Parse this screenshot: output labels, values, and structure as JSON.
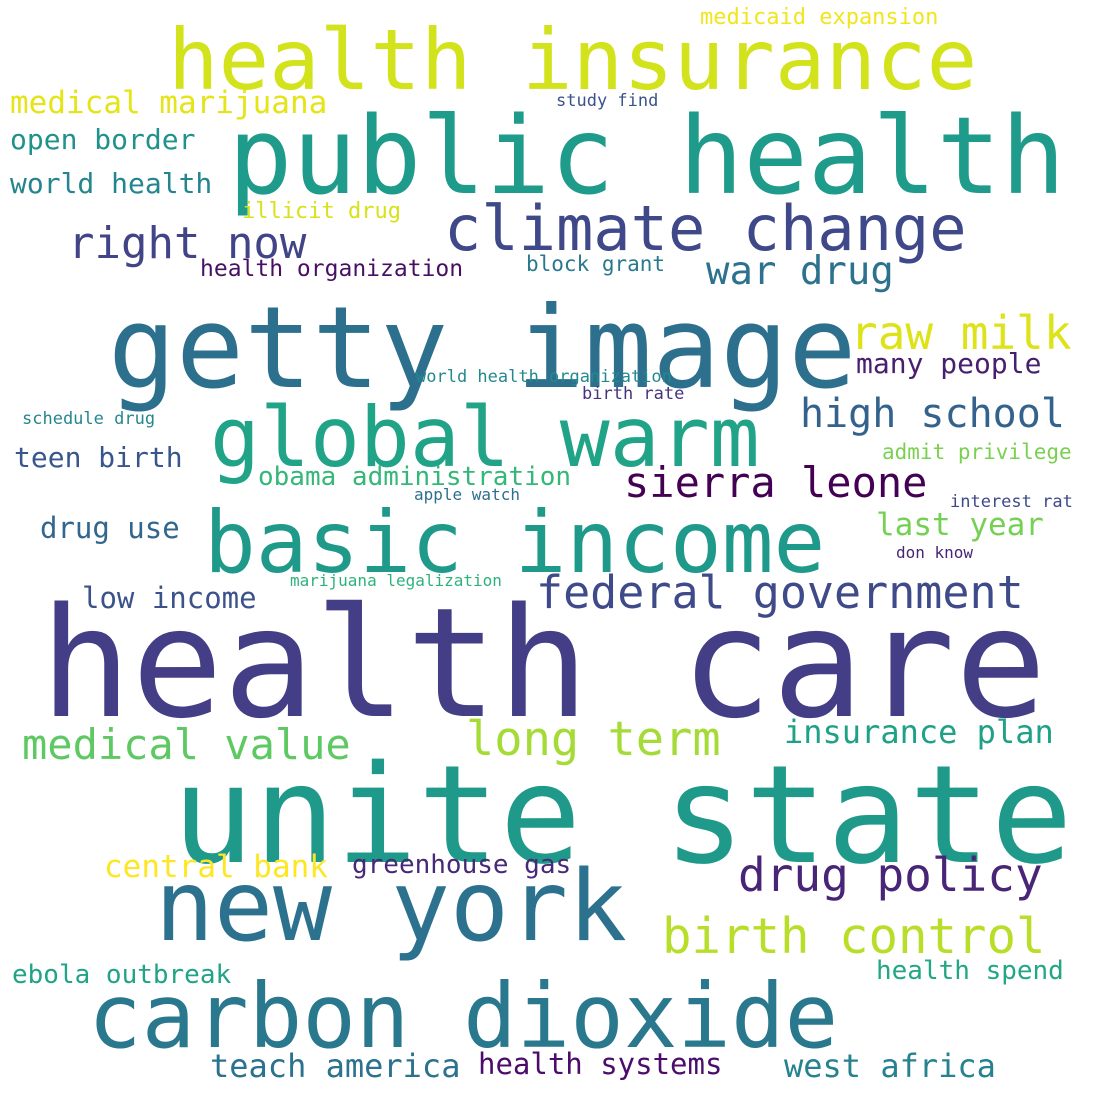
{
  "words": [
    {
      "text": "health care",
      "color": "#433e85"
    },
    {
      "text": "unite state",
      "color": "#1f9a8a"
    },
    {
      "text": "getty image",
      "color": "#2d708e"
    },
    {
      "text": "public health",
      "color": "#1e9b8a"
    },
    {
      "text": "health insurance",
      "color": "#d2e21b"
    },
    {
      "text": "basic income",
      "color": "#1f9a8a"
    },
    {
      "text": "global warm",
      "color": "#20a386"
    },
    {
      "text": "new york",
      "color": "#2c728e"
    },
    {
      "text": "carbon dioxide",
      "color": "#2a788e"
    },
    {
      "text": "climate change",
      "color": "#3f4889"
    },
    {
      "text": "federal government",
      "color": "#3e4a89"
    },
    {
      "text": "birth control",
      "color": "#b8de29"
    },
    {
      "text": "long term",
      "color": "#a5db36"
    },
    {
      "text": "drug policy",
      "color": "#482576"
    },
    {
      "text": "medical value",
      "color": "#5ec962"
    },
    {
      "text": "sierra leone",
      "color": "#440154"
    },
    {
      "text": "raw milk",
      "color": "#dde318"
    },
    {
      "text": "right now",
      "color": "#414487"
    },
    {
      "text": "war drug",
      "color": "#2c728e"
    },
    {
      "text": "high school",
      "color": "#33638d"
    },
    {
      "text": "medical marijuana",
      "color": "#e5e419"
    },
    {
      "text": "open border",
      "color": "#21918c"
    },
    {
      "text": "world health",
      "color": "#25858e"
    },
    {
      "text": "insurance plan",
      "color": "#1fa187"
    },
    {
      "text": "last year",
      "color": "#75d054"
    },
    {
      "text": "teach america",
      "color": "#2c728e"
    },
    {
      "text": "west africa",
      "color": "#26828e"
    },
    {
      "text": "health systems",
      "color": "#4b0c6b"
    },
    {
      "text": "greenhouse gas",
      "color": "#482878"
    },
    {
      "text": "central bank",
      "color": "#fde725"
    },
    {
      "text": "ebola outbreak",
      "color": "#20a386"
    },
    {
      "text": "health spend",
      "color": "#22a785"
    },
    {
      "text": "obama administration",
      "color": "#35b779"
    },
    {
      "text": "drug use",
      "color": "#31668e"
    },
    {
      "text": "low income",
      "color": "#3b528b"
    },
    {
      "text": "teen birth",
      "color": "#39568c"
    },
    {
      "text": "many people",
      "color": "#481f70"
    },
    {
      "text": "health organization",
      "color": "#471063"
    },
    {
      "text": "block grant",
      "color": "#29798e"
    },
    {
      "text": "illicit drug",
      "color": "#d8e219"
    },
    {
      "text": "admit privilege",
      "color": "#7ad151"
    },
    {
      "text": "medicaid expansion",
      "color": "#f1e51d"
    },
    {
      "text": "study find",
      "color": "#3b528b"
    },
    {
      "text": "world health organization",
      "color": "#23898e"
    },
    {
      "text": "birth rate",
      "color": "#46337e"
    },
    {
      "text": "schedule drug",
      "color": "#24878e"
    },
    {
      "text": "apple watch",
      "color": "#2e6e8e"
    },
    {
      "text": "interest rat",
      "color": "#3e4989"
    },
    {
      "text": "don know",
      "color": "#482677"
    },
    {
      "text": "marijuana legalization",
      "color": "#2db27d"
    }
  ]
}
